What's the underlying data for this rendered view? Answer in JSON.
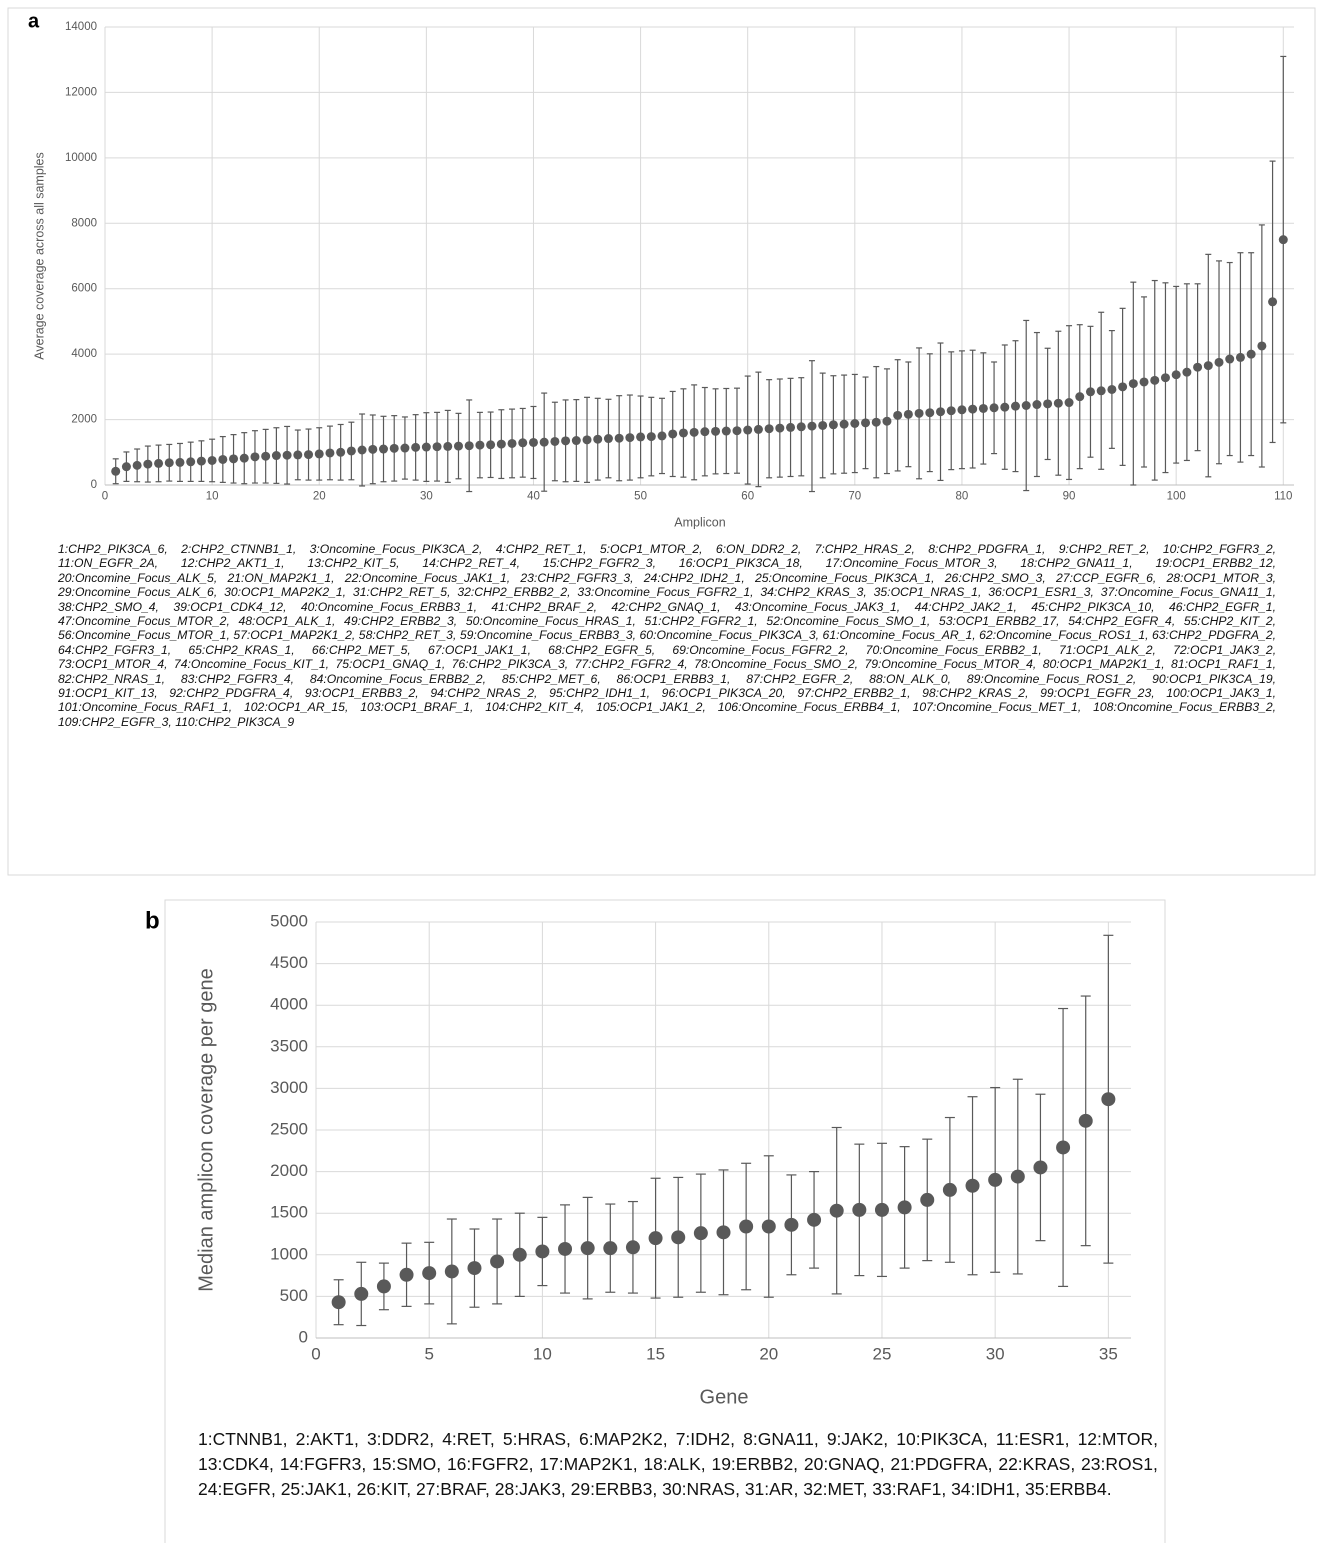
{
  "chart_data": [
    {
      "panel": "a",
      "type": "errorbar",
      "color": "#595959",
      "grid": true,
      "xlabel": "Amplicon",
      "ylabel": "Average coverage across all samples",
      "xlim": [
        0,
        111
      ],
      "ylim": [
        0,
        14000
      ],
      "xticks": [
        0,
        10,
        20,
        30,
        40,
        50,
        60,
        70,
        80,
        90,
        100,
        110
      ],
      "yticks": [
        0,
        2000,
        4000,
        6000,
        8000,
        10000,
        12000,
        14000
      ],
      "x": [
        1,
        2,
        3,
        4,
        5,
        6,
        7,
        8,
        9,
        10,
        11,
        12,
        13,
        14,
        15,
        16,
        17,
        18,
        19,
        20,
        21,
        22,
        23,
        24,
        25,
        26,
        27,
        28,
        29,
        30,
        31,
        32,
        33,
        34,
        35,
        36,
        37,
        38,
        39,
        40,
        41,
        42,
        43,
        44,
        45,
        46,
        47,
        48,
        49,
        50,
        51,
        52,
        53,
        54,
        55,
        56,
        57,
        58,
        59,
        60,
        61,
        62,
        63,
        64,
        65,
        66,
        67,
        68,
        69,
        70,
        71,
        72,
        73,
        74,
        75,
        76,
        77,
        78,
        79,
        80,
        81,
        82,
        83,
        84,
        85,
        86,
        87,
        88,
        89,
        90,
        91,
        92,
        93,
        94,
        95,
        96,
        97,
        98,
        99,
        100,
        101,
        102,
        103,
        104,
        105,
        106,
        107,
        108,
        109,
        110
      ],
      "values": [
        420,
        560,
        600,
        640,
        660,
        680,
        690,
        710,
        730,
        750,
        780,
        800,
        820,
        860,
        880,
        900,
        910,
        920,
        930,
        950,
        980,
        1000,
        1040,
        1070,
        1090,
        1100,
        1120,
        1130,
        1150,
        1160,
        1170,
        1180,
        1190,
        1200,
        1220,
        1230,
        1250,
        1270,
        1290,
        1300,
        1310,
        1330,
        1350,
        1360,
        1380,
        1400,
        1420,
        1430,
        1450,
        1470,
        1480,
        1500,
        1560,
        1590,
        1610,
        1630,
        1640,
        1650,
        1660,
        1680,
        1700,
        1720,
        1740,
        1760,
        1780,
        1800,
        1820,
        1840,
        1860,
        1880,
        1900,
        1920,
        1950,
        2130,
        2160,
        2190,
        2210,
        2240,
        2270,
        2300,
        2320,
        2340,
        2360,
        2380,
        2410,
        2430,
        2460,
        2480,
        2500,
        2520,
        2700,
        2850,
        2880,
        2920,
        3000,
        3100,
        3150,
        3200,
        3280,
        3370,
        3450,
        3600,
        3650,
        3750,
        3850,
        3900,
        4000,
        4250,
        5600,
        7500
      ],
      "errors": [
        380,
        450,
        500,
        550,
        560,
        560,
        580,
        600,
        620,
        650,
        700,
        740,
        780,
        800,
        820,
        850,
        880,
        760,
        780,
        800,
        820,
        850,
        880,
        1100,
        1050,
        1000,
        1000,
        950,
        1000,
        1050,
        1050,
        1100,
        1000,
        1400,
        1000,
        1000,
        1050,
        1050,
        1050,
        1100,
        1500,
        1200,
        1250,
        1250,
        1300,
        1250,
        1200,
        1300,
        1300,
        1250,
        1200,
        1150,
        1300,
        1350,
        1450,
        1350,
        1300,
        1300,
        1300,
        1650,
        1750,
        1500,
        1500,
        1500,
        1500,
        2000,
        1600,
        1500,
        1500,
        1500,
        1400,
        1700,
        1600,
        1700,
        1600,
        2000,
        1800,
        2100,
        1800,
        1800,
        1800,
        1700,
        1400,
        1900,
        2000,
        2600,
        2200,
        1700,
        2200,
        2350,
        2200,
        2000,
        2400,
        1800,
        2400,
        3100,
        2600,
        3050,
        2900,
        2700,
        2700,
        2550,
        3400,
        3100,
        2950,
        3200,
        3100,
        3700,
        4300,
        5600
      ],
      "key": [
        "1:CHP2_PIK3CA_6,",
        "2:CHP2_CTNNB1_1,",
        "3:Oncomine_Focus_PIK3CA_2,",
        "4:CHP2_RET_1,",
        "5:OCP1_MTOR_2,",
        "6:ON_DDR2_2,",
        "7:CHP2_HRAS_2,",
        "8:CHP2_PDGFRA_1,",
        "9:CHP2_RET_2,",
        "10:CHP2_FGFR3_2,",
        "11:ON_EGFR_2A,",
        "12:CHP2_AKT1_1,",
        "13:CHP2_KIT_5,",
        "14:CHP2_RET_4,",
        "15:CHP2_FGFR2_3,",
        "16:OCP1_PIK3CA_18,",
        "17:Oncomine_Focus_MTOR_3,",
        "18:CHP2_GNA11_1,",
        "19:OCP1_ERBB2_12,",
        "20:Oncomine_Focus_ALK_5,",
        "21:ON_MAP2K1_1,",
        "22:Oncomine_Focus_JAK1_1,",
        "23:CHP2_FGFR3_3,",
        "24:CHP2_IDH2_1,",
        "25:Oncomine_Focus_PIK3CA_1,",
        "26:CHP2_SMO_3,",
        "27:CCP_EGFR_6,",
        "28:OCP1_MTOR_3,",
        "29:Oncomine_Focus_ALK_6,",
        "30:OCP1_MAP2K2_1,",
        "31:CHP2_RET_5,",
        "32:CHP2_ERBB2_2,",
        "33:Oncomine_Focus_FGFR2_1,",
        "34:CHP2_KRAS_3,",
        "35:OCP1_NRAS_1,",
        "36:OCP1_ESR1_3,",
        "37:Oncomine_Focus_GNA11_1,",
        "38:CHP2_SMO_4,",
        "39:OCP1_CDK4_12,",
        "40:Oncomine_Focus_ERBB3_1,",
        "41:CHP2_BRAF_2,",
        "42:CHP2_GNAQ_1,",
        "43:Oncomine_Focus_JAK3_1,",
        "44:CHP2_JAK2_1,",
        "45:CHP2_PIK3CA_10,",
        "46:CHP2_EGFR_1,",
        "47:Oncomine_Focus_MTOR_2,",
        "48:OCP1_ALK_1,",
        "49:CHP2_ERBB2_3,",
        "50:Oncomine_Focus_HRAS_1,",
        "51:CHP2_FGFR2_1,",
        "52:Oncomine_Focus_SMO_1,",
        "53:OCP1_ERBB2_17,",
        "54:CHP2_EGFR_4,",
        "55:CHP2_KIT_2,",
        "56:Oncomine_Focus_MTOR_1,",
        "57:OCP1_MAP2K1_2,",
        "58:CHP2_RET_3,",
        "59:Oncomine_Focus_ERBB3_3,",
        "60:Oncomine_Focus_PIK3CA_3,",
        "61:Oncomine_Focus_AR_1,",
        "62:Oncomine_Focus_ROS1_1,",
        "63:CHP2_PDGFRA_2,",
        "64:CHP2_FGFR3_1,",
        "65:CHP2_KRAS_1,",
        "66:CHP2_MET_5,",
        "67:OCP1_JAK1_1,",
        "68:CHP2_EGFR_5,",
        "69:Oncomine_Focus_FGFR2_2,",
        "70:Oncomine_Focus_ERBB2_1,",
        "71:OCP1_ALK_2,",
        "72:OCP1_JAK3_2,",
        "73:OCP1_MTOR_4,",
        "74:Oncomine_Focus_KIT_1,",
        "75:OCP1_GNAQ_1,",
        "76:CHP2_PIK3CA_3,",
        "77:CHP2_FGFR2_4,",
        "78:Oncomine_Focus_SMO_2,",
        "79:Oncomine_Focus_MTOR_4,",
        "80:OCP1_MAP2K1_1,",
        "81:OCP1_RAF1_1,",
        "82:CHP2_NRAS_1,",
        "83:CHP2_FGFR3_4,",
        "84:Oncomine_Focus_ERBB2_2,",
        "85:CHP2_MET_6,",
        "86:OCP1_ERBB3_1,",
        "87:CHP2_EGFR_2,",
        "88:ON_ALK_0,",
        "89:Oncomine_Focus_ROS1_2,",
        "90:OCP1_PIK3CA_19,",
        "91:OCP1_KIT_13,",
        "92:CHP2_PDGFRA_4,",
        "93:OCP1_ERBB3_2,",
        "94:CHP2_NRAS_2,",
        "95:CHP2_IDH1_1,",
        "96:OCP1_PIK3CA_20,",
        "97:CHP2_ERBB2_1,",
        "98:CHP2_KRAS_2,",
        "99:OCP1_EGFR_23,",
        "100:OCP1_JAK3_1,",
        "101:Oncomine_Focus_RAF1_1,",
        "102:OCP1_AR_15,",
        "103:OCP1_BRAF_1,",
        "104:CHP2_KIT_4,",
        "105:OCP1_JAK1_2,",
        "106:Oncomine_Focus_ERBB4_1,",
        "107:Oncomine_Focus_MET_1,",
        "108:Oncomine_Focus_ERBB3_2,",
        "109:CHP2_EGFR_3,",
        "110:CHP2_PIK3CA_9"
      ]
    },
    {
      "panel": "b",
      "type": "errorbar",
      "color": "#595959",
      "grid": true,
      "xlabel": "Gene",
      "ylabel": "Median amplicon coverage per gene",
      "xlim": [
        0,
        36
      ],
      "ylim": [
        0,
        5000
      ],
      "xticks": [
        0,
        5,
        10,
        15,
        20,
        25,
        30,
        35
      ],
      "yticks": [
        0,
        500,
        1000,
        1500,
        2000,
        2500,
        3000,
        3500,
        4000,
        4500,
        5000
      ],
      "x": [
        1,
        2,
        3,
        4,
        5,
        6,
        7,
        8,
        9,
        10,
        11,
        12,
        13,
        14,
        15,
        16,
        17,
        18,
        19,
        20,
        21,
        22,
        23,
        24,
        25,
        26,
        27,
        28,
        29,
        30,
        31,
        32,
        33,
        34,
        35
      ],
      "values": [
        430,
        530,
        620,
        760,
        780,
        800,
        840,
        920,
        1000,
        1040,
        1070,
        1080,
        1080,
        1090,
        1200,
        1210,
        1260,
        1270,
        1340,
        1340,
        1360,
        1420,
        1530,
        1540,
        1540,
        1570,
        1660,
        1780,
        1830,
        1900,
        1940,
        2050,
        2290,
        2610,
        2870
      ],
      "errors": [
        270,
        380,
        280,
        380,
        370,
        630,
        470,
        510,
        500,
        410,
        530,
        610,
        530,
        550,
        720,
        720,
        710,
        750,
        760,
        850,
        600,
        580,
        1000,
        790,
        800,
        730,
        730,
        870,
        1070,
        1110,
        1170,
        880,
        1670,
        1500,
        1970
      ],
      "key": [
        "1:CTNNB1,",
        "2:AKT1,",
        "3:DDR2,",
        "4:RET,",
        "5:HRAS,",
        "6:MAP2K2,",
        "7:IDH2,",
        "8:GNA11,",
        "9:JAK2,",
        "10:PIK3CA,",
        "11:ESR1,",
        "12:MTOR,",
        "13:CDK4,",
        "14:FGFR3,",
        "15:SMO,",
        "16:FGFR2,",
        "17:MAP2K1,",
        "18:ALK,",
        "19:ERBB2,",
        "20:GNAQ,",
        "21:PDGFRA,",
        "22:KRAS,",
        "23:ROS1,",
        "24:EGFR,",
        "25:JAK1,",
        "26:KIT,",
        "27:BRAF,",
        "28:JAK3,",
        "29:ERBB3,",
        "30:NRAS,",
        "31:AR,",
        "32:MET,",
        "33:RAF1,",
        "34:IDH1,",
        "35:ERBB4."
      ]
    }
  ]
}
